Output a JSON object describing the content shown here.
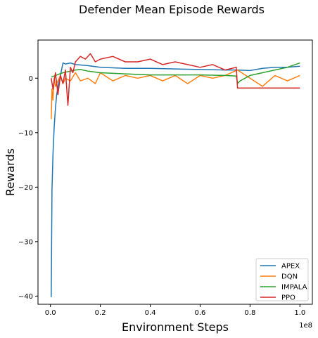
{
  "chart_data": {
    "type": "line",
    "title": "Defender Mean Episode Rewards",
    "xlabel": "Environment Steps",
    "ylabel": "Rewards",
    "x_offset_label": "1e8",
    "xlim": [
      -0.05,
      1.05
    ],
    "ylim": [
      -41.5,
      7.0
    ],
    "xticks": [
      0.0,
      0.2,
      0.4,
      0.6,
      0.8,
      1.0
    ],
    "xtick_labels": [
      "0.0",
      "0.2",
      "0.4",
      "0.6",
      "0.8",
      "1.0"
    ],
    "yticks": [
      -40,
      -30,
      -20,
      -10,
      0
    ],
    "ytick_labels": [
      "−40",
      "−30",
      "−20",
      "−10",
      "0"
    ],
    "grid": false,
    "legend_position": "bottom-right",
    "series": [
      {
        "name": "APEX",
        "color": "#1f77b4",
        "x": [
          0.003,
          0.006,
          0.01,
          0.015,
          0.02,
          0.025,
          0.03,
          0.04,
          0.05,
          0.06,
          0.08,
          0.1,
          0.15,
          0.2,
          0.3,
          0.4,
          0.5,
          0.6,
          0.7,
          0.75,
          0.8,
          0.85,
          0.9,
          0.95,
          1.0
        ],
        "y": [
          -40.2,
          -20.5,
          -14.0,
          -9.0,
          -5.5,
          -3.0,
          -1.5,
          0.5,
          2.8,
          2.6,
          2.8,
          2.5,
          2.3,
          2.0,
          1.8,
          1.8,
          1.7,
          1.6,
          1.5,
          1.5,
          1.4,
          1.8,
          2.0,
          2.0,
          2.2
        ]
      },
      {
        "name": "DQN",
        "color": "#ff7f0e",
        "x": [
          0.003,
          0.006,
          0.01,
          0.015,
          0.02,
          0.03,
          0.04,
          0.05,
          0.06,
          0.08,
          0.1,
          0.12,
          0.15,
          0.18,
          0.2,
          0.25,
          0.3,
          0.35,
          0.4,
          0.45,
          0.5,
          0.55,
          0.6,
          0.65,
          0.7,
          0.75,
          0.8,
          0.85,
          0.9,
          0.95,
          1.0
        ],
        "y": [
          -7.5,
          -2.0,
          -4.0,
          0.0,
          -1.5,
          -0.5,
          0.5,
          -1.0,
          0.0,
          -0.5,
          1.0,
          -0.5,
          0.0,
          -1.0,
          1.0,
          -0.5,
          0.5,
          0.0,
          0.5,
          -0.5,
          0.5,
          -1.0,
          0.5,
          0.0,
          0.5,
          1.5,
          0.0,
          -1.5,
          0.5,
          -0.5,
          0.5
        ]
      },
      {
        "name": "IMPALA",
        "color": "#2ca02c",
        "x": [
          0.003,
          0.02,
          0.05,
          0.08,
          0.1,
          0.12,
          0.15,
          0.2,
          0.3,
          0.4,
          0.5,
          0.6,
          0.7,
          0.745,
          0.75,
          0.76,
          0.78,
          0.8,
          0.85,
          0.9,
          0.95,
          1.0
        ],
        "y": [
          0.2,
          0.5,
          1.0,
          1.3,
          1.5,
          1.6,
          1.3,
          1.0,
          0.8,
          0.6,
          0.6,
          0.6,
          0.5,
          0.4,
          -1.0,
          -0.5,
          0.0,
          0.5,
          1.0,
          1.5,
          2.0,
          2.8
        ]
      },
      {
        "name": "PPO",
        "color": "#d62728",
        "x": [
          0.003,
          0.01,
          0.02,
          0.03,
          0.04,
          0.05,
          0.06,
          0.07,
          0.08,
          0.09,
          0.1,
          0.12,
          0.14,
          0.16,
          0.18,
          0.2,
          0.25,
          0.3,
          0.35,
          0.4,
          0.45,
          0.5,
          0.55,
          0.6,
          0.65,
          0.7,
          0.745,
          0.75,
          0.8,
          0.85,
          0.9,
          0.95,
          1.0
        ],
        "y": [
          0.0,
          -2.0,
          1.0,
          -3.0,
          0.5,
          -1.0,
          1.5,
          -5.0,
          2.0,
          1.0,
          3.0,
          4.0,
          3.5,
          4.5,
          3.0,
          3.5,
          4.0,
          3.0,
          3.0,
          3.5,
          2.5,
          3.0,
          2.5,
          2.0,
          2.5,
          1.5,
          2.0,
          -1.8,
          -1.8,
          -1.8,
          -1.8,
          -1.8,
          -1.8
        ]
      }
    ]
  }
}
